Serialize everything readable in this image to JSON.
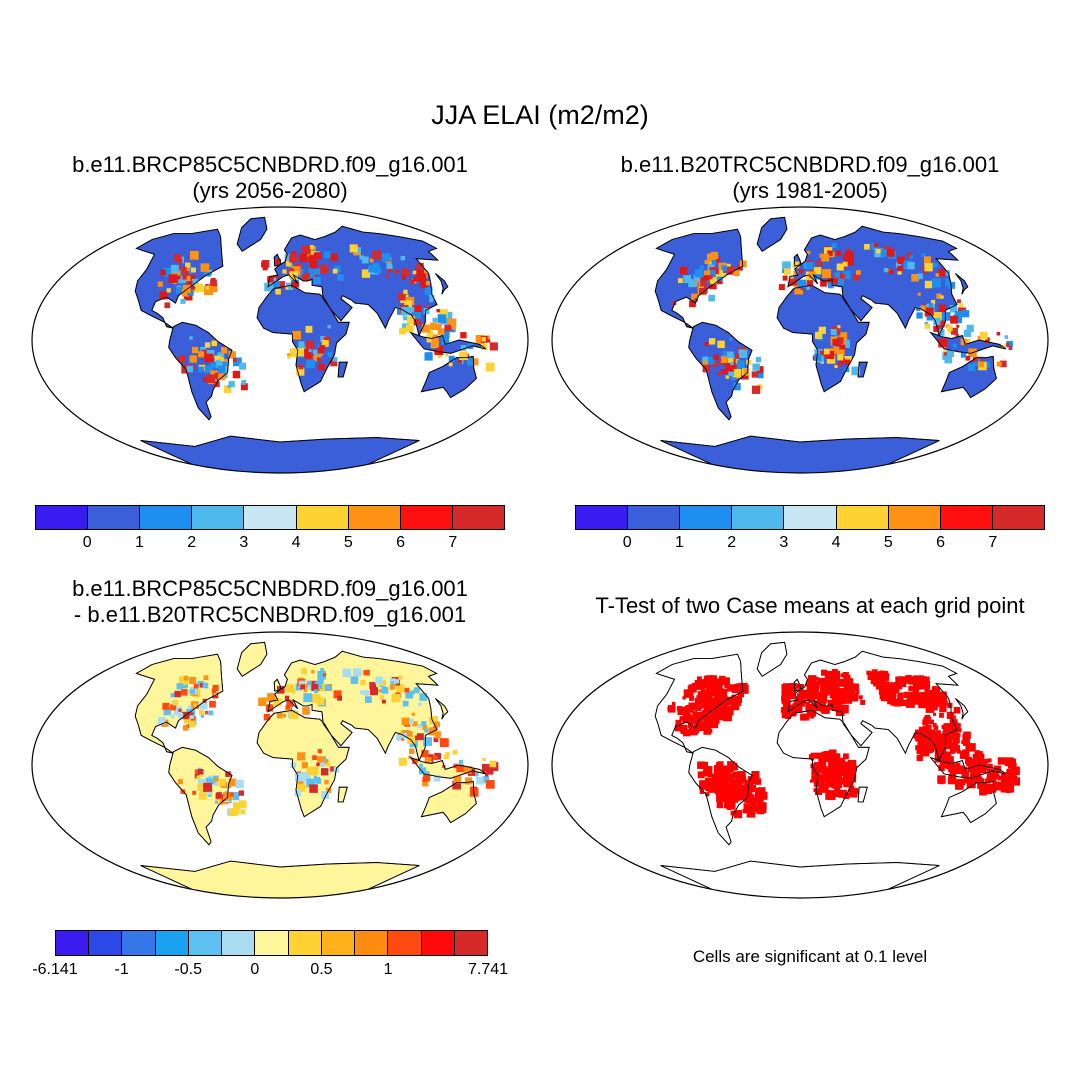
{
  "title": "JJA ELAI (m2/m2)",
  "panels": {
    "top_left": {
      "line1": "b.e11.BRCP85C5CNBDRD.f09_g16.001",
      "line2": "(yrs 2056-2080)"
    },
    "top_right": {
      "line1": "b.e11.B20TRC5CNBDRD.f09_g16.001",
      "line2": "(yrs 1981-2005)"
    },
    "bottom_left": {
      "line1": "b.e11.BRCP85C5CNBDRD.f09_g16.001",
      "line2": "- b.e11.B20TRC5CNBDRD.f09_g16.001"
    },
    "bottom_right": {
      "line1": "T-Test of two Case means at each grid point"
    }
  },
  "colorbars": {
    "value": {
      "colors": [
        "#3b1cf0",
        "#3a5fd8",
        "#1e8ef0",
        "#4fb9ee",
        "#c8e6f4",
        "#ffd233",
        "#ff9214",
        "#ff1010",
        "#d62a2a"
      ],
      "labels": [
        "0",
        "1",
        "2",
        "3",
        "4",
        "5",
        "6",
        "7"
      ]
    },
    "difference": {
      "colors": [
        "#3b1cf0",
        "#2c48e6",
        "#3577e8",
        "#1aa2f0",
        "#5cc1f0",
        "#a8dcf0",
        "#fff59a",
        "#ffd233",
        "#ffb11a",
        "#ff8c10",
        "#ff4a10",
        "#ff0a0a",
        "#d62a2a"
      ],
      "labels": [
        "-6.141",
        "-1",
        "-0.5",
        "0",
        "0.5",
        "1",
        "7.741"
      ]
    }
  },
  "significance_note": "Cells are significant at 0.1 level",
  "map_colors": {
    "ocean": "#ffffff",
    "land_low": "#3a5fd8",
    "land_high": "#e01818",
    "land_mid": "#ffd233",
    "significant": "#ff0000",
    "diff_base": "#fff59a"
  }
}
